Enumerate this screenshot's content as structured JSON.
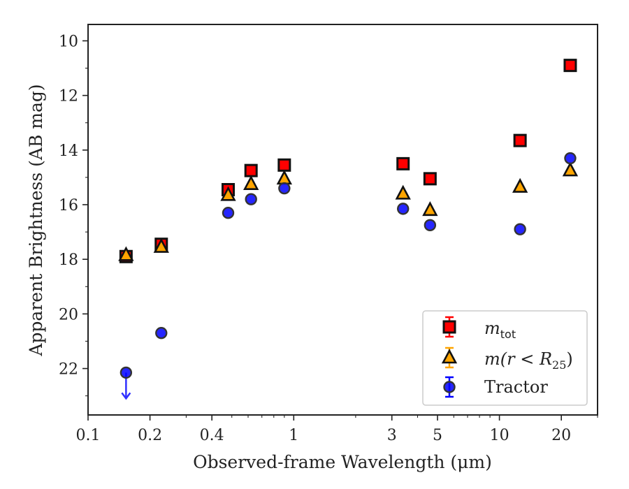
{
  "chart_data": {
    "type": "scatter",
    "xscale": "log",
    "yinverted": true,
    "xlim": [
      0.1,
      30
    ],
    "ylim": [
      23.7,
      9.4
    ],
    "xlabel": "Observed-frame Wavelength (μm)",
    "ylabel": "Apparent Brightness (AB mag)",
    "x_ticks": [
      {
        "value": 0.1,
        "label": "0.1"
      },
      {
        "value": 0.2,
        "label": "0.2"
      },
      {
        "value": 0.4,
        "label": "0.4"
      },
      {
        "value": 1,
        "label": "1"
      },
      {
        "value": 3,
        "label": "3"
      },
      {
        "value": 5,
        "label": "5"
      },
      {
        "value": 10,
        "label": "10"
      },
      {
        "value": 20,
        "label": "20"
      }
    ],
    "y_ticks": [
      {
        "value": 10,
        "label": "10"
      },
      {
        "value": 12,
        "label": "12"
      },
      {
        "value": 14,
        "label": "14"
      },
      {
        "value": 16,
        "label": "16"
      },
      {
        "value": 18,
        "label": "18"
      },
      {
        "value": 20,
        "label": "20"
      },
      {
        "value": 22,
        "label": "22"
      }
    ],
    "grid": false,
    "legend_position": "lower-right",
    "series": [
      {
        "name": "m_tot",
        "marker": "square",
        "color": "#ff0000",
        "points": [
          {
            "x": 0.153,
            "y": 17.9
          },
          {
            "x": 0.227,
            "y": 17.45
          },
          {
            "x": 0.48,
            "y": 15.45
          },
          {
            "x": 0.62,
            "y": 14.75
          },
          {
            "x": 0.9,
            "y": 14.55
          },
          {
            "x": 3.4,
            "y": 14.5
          },
          {
            "x": 4.6,
            "y": 15.05
          },
          {
            "x": 12.6,
            "y": 13.65
          },
          {
            "x": 22.1,
            "y": 10.9
          }
        ]
      },
      {
        "name": "m(r < R25)",
        "marker": "triangle",
        "color": "#ffa500",
        "points": [
          {
            "x": 0.153,
            "y": 17.85
          },
          {
            "x": 0.227,
            "y": 17.55
          },
          {
            "x": 0.48,
            "y": 15.65
          },
          {
            "x": 0.62,
            "y": 15.25
          },
          {
            "x": 0.9,
            "y": 15.05
          },
          {
            "x": 3.4,
            "y": 15.6
          },
          {
            "x": 4.6,
            "y": 16.2
          },
          {
            "x": 12.6,
            "y": 15.35
          },
          {
            "x": 22.1,
            "y": 14.75
          }
        ]
      },
      {
        "name": "Tractor",
        "marker": "circle",
        "color": "#0000ff",
        "points": [
          {
            "x": 0.153,
            "y": 22.15,
            "upper_limit": true
          },
          {
            "x": 0.227,
            "y": 20.7
          },
          {
            "x": 0.48,
            "y": 16.3
          },
          {
            "x": 0.62,
            "y": 15.8
          },
          {
            "x": 0.9,
            "y": 15.4
          },
          {
            "x": 3.4,
            "y": 16.15
          },
          {
            "x": 4.6,
            "y": 16.75
          },
          {
            "x": 12.6,
            "y": 16.9
          },
          {
            "x": 22.1,
            "y": 14.3
          }
        ]
      }
    ]
  },
  "legend": {
    "items": [
      {
        "main": "m",
        "sub": "tot"
      },
      {
        "main": "m(r < R",
        "sub": "25",
        "after": ")"
      },
      {
        "main": "Tractor"
      }
    ]
  }
}
